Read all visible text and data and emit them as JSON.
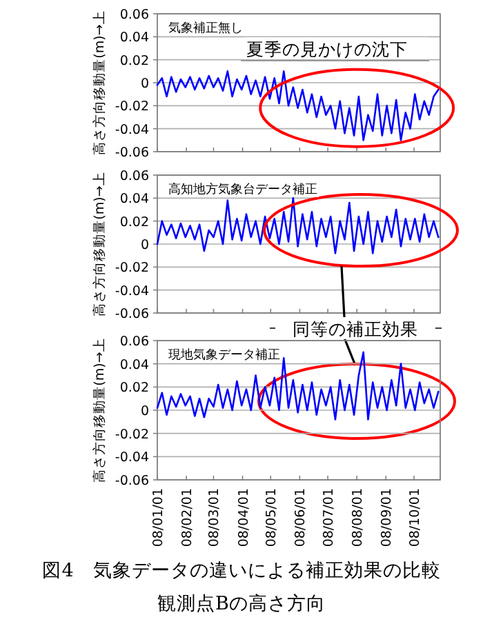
{
  "chart_data": [
    {
      "type": "line",
      "title": "気象補正無し",
      "ylabel": "高さ方向移動量(m)→上",
      "x": [
        "2008-01-01",
        "2008-01-06",
        "2008-01-11",
        "2008-01-16",
        "2008-01-21",
        "2008-01-26",
        "2008-01-31",
        "2008-02-05",
        "2008-02-10",
        "2008-02-15",
        "2008-02-20",
        "2008-02-25",
        "2008-03-01",
        "2008-03-06",
        "2008-03-11",
        "2008-03-16",
        "2008-03-21",
        "2008-03-26",
        "2008-03-31",
        "2008-04-05",
        "2008-04-10",
        "2008-04-15",
        "2008-04-20",
        "2008-04-25",
        "2008-04-30",
        "2008-05-05",
        "2008-05-10",
        "2008-05-15",
        "2008-05-20",
        "2008-05-25",
        "2008-05-30",
        "2008-06-04",
        "2008-06-09",
        "2008-06-14",
        "2008-06-19",
        "2008-06-24",
        "2008-06-29",
        "2008-07-04",
        "2008-07-09",
        "2008-07-14",
        "2008-07-19",
        "2008-07-24",
        "2008-07-29",
        "2008-08-03",
        "2008-08-08",
        "2008-08-13",
        "2008-08-18",
        "2008-08-23",
        "2008-08-28",
        "2008-09-02",
        "2008-09-07",
        "2008-09-12",
        "2008-09-17",
        "2008-09-22",
        "2008-09-27",
        "2008-10-02",
        "2008-10-07",
        "2008-10-12",
        "2008-10-17",
        "2008-10-22",
        "2008-10-27"
      ],
      "series": [
        {
          "color": "#0000ff",
          "values": [
            -0.002,
            0.004,
            -0.012,
            0.005,
            -0.008,
            0.003,
            -0.004,
            0.005,
            -0.006,
            0.004,
            -0.005,
            0.006,
            -0.004,
            0.004,
            -0.007,
            0.01,
            -0.012,
            0.003,
            -0.006,
            0.006,
            -0.01,
            0.002,
            -0.012,
            0.005,
            -0.014,
            0.004,
            -0.018,
            0.01,
            -0.02,
            -0.004,
            -0.022,
            -0.006,
            -0.026,
            -0.01,
            -0.03,
            -0.012,
            -0.028,
            -0.02,
            -0.04,
            -0.016,
            -0.044,
            -0.022,
            -0.046,
            -0.012,
            -0.05,
            -0.028,
            -0.042,
            -0.01,
            -0.046,
            -0.02,
            -0.044,
            -0.015,
            -0.05,
            -0.026,
            -0.04,
            -0.01,
            -0.032,
            -0.016,
            -0.028,
            -0.012,
            -0.006
          ]
        }
      ],
      "xlim": [
        "2008-01-01",
        "2008-10-29"
      ],
      "xticks": [
        {
          "value": "2008-01-01",
          "label": null
        },
        {
          "value": "2008-02-01",
          "label": null
        },
        {
          "value": "2008-03-01",
          "label": null
        },
        {
          "value": "2008-04-01",
          "label": null
        },
        {
          "value": "2008-05-01",
          "label": null
        },
        {
          "value": "2008-06-01",
          "label": null
        },
        {
          "value": "2008-07-01",
          "label": null
        },
        {
          "value": "2008-08-01",
          "label": null
        },
        {
          "value": "2008-09-01",
          "label": null
        },
        {
          "value": "2008-10-01",
          "label": null
        }
      ],
      "ylim": [
        -0.06,
        0.06
      ],
      "yticks": [
        -0.06,
        -0.04,
        -0.02,
        0,
        0.02,
        0.04,
        0.06
      ],
      "grid": "y",
      "tick_labels": "y",
      "annotations": [
        {
          "text": "夏季の見かけの沈下",
          "x": "2008-08-01",
          "y": -0.022
        }
      ]
    },
    {
      "type": "line",
      "title": "高知地方気象台データ補正",
      "ylabel": "高さ方向移動量(m)→上",
      "x": [
        "2008-01-01",
        "2008-01-06",
        "2008-01-11",
        "2008-01-16",
        "2008-01-21",
        "2008-01-26",
        "2008-01-31",
        "2008-02-05",
        "2008-02-10",
        "2008-02-15",
        "2008-02-20",
        "2008-02-25",
        "2008-03-01",
        "2008-03-06",
        "2008-03-11",
        "2008-03-16",
        "2008-03-21",
        "2008-03-26",
        "2008-03-31",
        "2008-04-05",
        "2008-04-10",
        "2008-04-15",
        "2008-04-20",
        "2008-04-25",
        "2008-04-30",
        "2008-05-05",
        "2008-05-10",
        "2008-05-15",
        "2008-05-20",
        "2008-05-25",
        "2008-05-30",
        "2008-06-04",
        "2008-06-09",
        "2008-06-14",
        "2008-06-19",
        "2008-06-24",
        "2008-06-29",
        "2008-07-04",
        "2008-07-09",
        "2008-07-14",
        "2008-07-19",
        "2008-07-24",
        "2008-07-29",
        "2008-08-03",
        "2008-08-08",
        "2008-08-13",
        "2008-08-18",
        "2008-08-23",
        "2008-08-28",
        "2008-09-02",
        "2008-09-07",
        "2008-09-12",
        "2008-09-17",
        "2008-09-22",
        "2008-09-27",
        "2008-10-02",
        "2008-10-07",
        "2008-10-12",
        "2008-10-17",
        "2008-10-22",
        "2008-10-27"
      ],
      "series": [
        {
          "color": "#0000ff",
          "values": [
            0.0,
            0.02,
            0.008,
            0.017,
            0.005,
            0.018,
            0.006,
            0.016,
            0.004,
            0.017,
            -0.006,
            0.012,
            0.006,
            0.02,
            0.0,
            0.038,
            0.004,
            0.022,
            0.003,
            0.026,
            0.006,
            0.02,
            0.0,
            0.024,
            0.005,
            0.022,
            0.0,
            0.028,
            0.002,
            0.04,
            -0.002,
            0.026,
            0.004,
            0.028,
            -0.002,
            0.022,
            0.006,
            0.024,
            -0.008,
            0.02,
            0.004,
            0.036,
            -0.006,
            0.024,
            0.0,
            0.028,
            -0.008,
            0.02,
            0.002,
            0.024,
            0.006,
            0.03,
            -0.002,
            0.022,
            0.004,
            0.022,
            0.002,
            0.026,
            0.006,
            0.02,
            0.006
          ]
        }
      ],
      "xlim": [
        "2008-01-01",
        "2008-10-29"
      ],
      "xticks": [
        {
          "value": "2008-01-01",
          "label": null
        },
        {
          "value": "2008-02-01",
          "label": null
        },
        {
          "value": "2008-03-01",
          "label": null
        },
        {
          "value": "2008-04-01",
          "label": null
        },
        {
          "value": "2008-05-01",
          "label": null
        },
        {
          "value": "2008-06-01",
          "label": null
        },
        {
          "value": "2008-07-01",
          "label": null
        },
        {
          "value": "2008-08-01",
          "label": null
        },
        {
          "value": "2008-09-01",
          "label": null
        },
        {
          "value": "2008-10-01",
          "label": null
        }
      ],
      "ylim": [
        -0.06,
        0.06
      ],
      "yticks": [
        -0.06,
        -0.04,
        -0.02,
        0,
        0.02,
        0.04,
        0.06
      ],
      "grid": "y",
      "tick_labels": "y",
      "annotations": [
        "同等の補正効果"
      ]
    },
    {
      "type": "line",
      "title": "現地気象データ補正",
      "ylabel": "高さ方向移動量(m)→上",
      "x": [
        "2008-01-01",
        "2008-01-06",
        "2008-01-11",
        "2008-01-16",
        "2008-01-21",
        "2008-01-26",
        "2008-01-31",
        "2008-02-05",
        "2008-02-10",
        "2008-02-15",
        "2008-02-20",
        "2008-02-25",
        "2008-03-01",
        "2008-03-06",
        "2008-03-11",
        "2008-03-16",
        "2008-03-21",
        "2008-03-26",
        "2008-03-31",
        "2008-04-05",
        "2008-04-10",
        "2008-04-15",
        "2008-04-20",
        "2008-04-25",
        "2008-04-30",
        "2008-05-05",
        "2008-05-10",
        "2008-05-15",
        "2008-05-20",
        "2008-05-25",
        "2008-05-30",
        "2008-06-04",
        "2008-06-09",
        "2008-06-14",
        "2008-06-19",
        "2008-06-24",
        "2008-06-29",
        "2008-07-04",
        "2008-07-09",
        "2008-07-14",
        "2008-07-19",
        "2008-07-24",
        "2008-07-29",
        "2008-08-03",
        "2008-08-08",
        "2008-08-13",
        "2008-08-18",
        "2008-08-23",
        "2008-08-28",
        "2008-09-02",
        "2008-09-07",
        "2008-09-12",
        "2008-09-17",
        "2008-09-22",
        "2008-09-27",
        "2008-10-02",
        "2008-10-07",
        "2008-10-12",
        "2008-10-17",
        "2008-10-22",
        "2008-10-27"
      ],
      "series": [
        {
          "color": "#0000ff",
          "values": [
            0.002,
            0.015,
            -0.004,
            0.012,
            0.003,
            0.014,
            0.004,
            0.012,
            -0.005,
            0.01,
            -0.006,
            0.01,
            0.003,
            0.022,
            0.002,
            0.018,
            0.0,
            0.025,
            0.004,
            0.018,
            0.0,
            0.03,
            0.002,
            0.02,
            0.004,
            0.028,
            0.0,
            0.045,
            0.002,
            0.026,
            -0.002,
            0.022,
            0.0,
            0.024,
            -0.004,
            0.018,
            0.004,
            0.02,
            -0.008,
            0.026,
            0.0,
            0.022,
            -0.004,
            0.03,
            0.05,
            -0.008,
            0.024,
            0.002,
            0.02,
            0.0,
            0.026,
            0.004,
            0.04,
            0.002,
            0.018,
            0.0,
            0.024,
            0.006,
            0.018,
            0.002,
            0.016
          ]
        }
      ],
      "xlim": [
        "2008-01-01",
        "2008-10-29"
      ],
      "xticks": [
        {
          "value": "2008-01-01",
          "label": "08/01/01"
        },
        {
          "value": "2008-02-01",
          "label": "08/02/01"
        },
        {
          "value": "2008-03-01",
          "label": "08/03/01"
        },
        {
          "value": "2008-04-01",
          "label": "08/04/01"
        },
        {
          "value": "2008-05-01",
          "label": "08/05/01"
        },
        {
          "value": "2008-06-01",
          "label": "08/06/01"
        },
        {
          "value": "2008-07-01",
          "label": "08/07/01"
        },
        {
          "value": "2008-08-01",
          "label": "08/08/01"
        },
        {
          "value": "2008-09-01",
          "label": "08/09/01"
        },
        {
          "value": "2008-10-01",
          "label": "08/10/01"
        }
      ],
      "ylim": [
        -0.06,
        0.06
      ],
      "yticks": [
        -0.06,
        -0.04,
        -0.02,
        0,
        0.02,
        0.04,
        0.06
      ],
      "grid": "y",
      "annotations": [
        "図4　気象データの違いによる補正効果の比較",
        "観測点Bの高さ方向"
      ]
    }
  ]
}
